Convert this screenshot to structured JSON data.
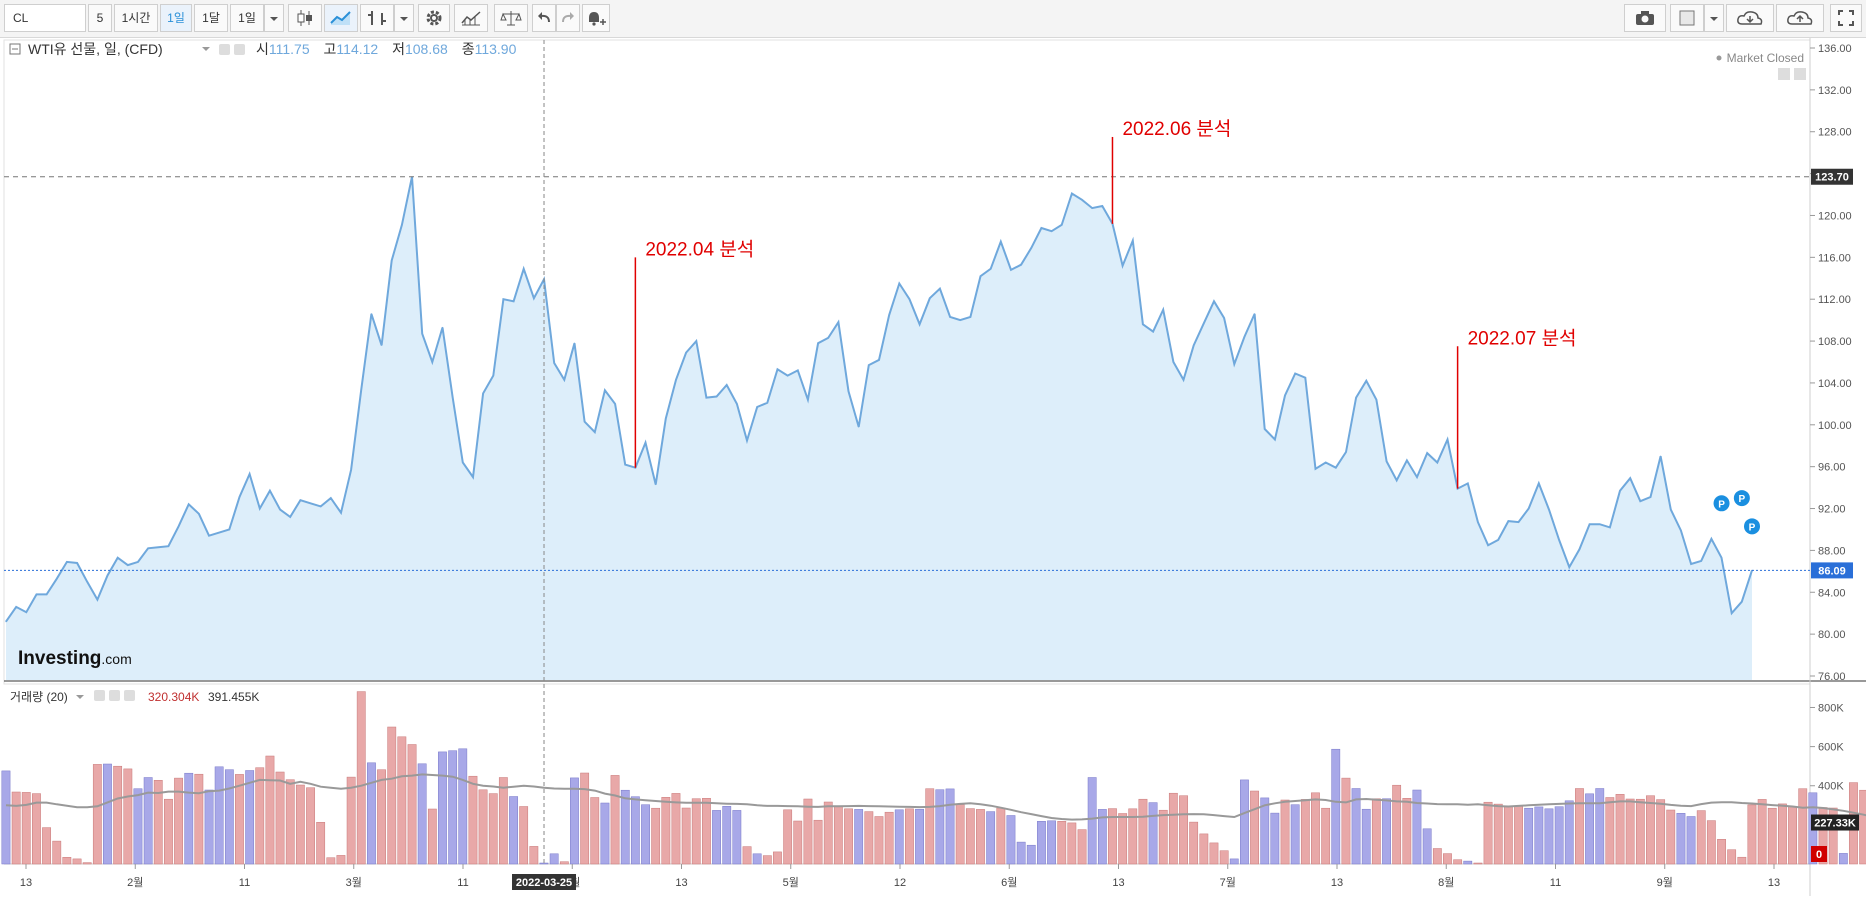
{
  "toolbar": {
    "symbol": "CL",
    "interval_minutes": "5",
    "interval_hour": "1시간",
    "interval_day": "1일",
    "interval_month": "1달",
    "range": "1일"
  },
  "header": {
    "title": "WTI유 선물, 일, (CFD)",
    "open_label": "시",
    "open": "111.75",
    "high_label": "고",
    "high": "114.12",
    "low_label": "저",
    "low": "108.68",
    "close_label": "종",
    "close": "113.90",
    "market_status": "Market Closed"
  },
  "brand": {
    "name": "Investing",
    "suffix": ".com"
  },
  "volume_header": {
    "label": "거래량 (20)",
    "value1": "320.304K",
    "value2": "391.455K"
  },
  "colors": {
    "line": "#6fa8dc",
    "area": "#ddeefa",
    "vol_up": "#a8a8e8",
    "vol_down": "#e8a8a8",
    "vol_ma": "#999999",
    "annotation": "#e00000",
    "last_price": "#2a6fd8"
  },
  "chart_data": [
    {
      "type": "area",
      "title": "WTI유 선물, 일, (CFD)",
      "ylim": [
        75,
        137
      ],
      "yticks": [
        "76.00",
        "80.00",
        "84.00",
        "88.00",
        "92.00",
        "96.00",
        "100.00",
        "104.00",
        "108.00",
        "112.00",
        "116.00",
        "120.00",
        "124.00",
        "128.00",
        "132.00",
        "136.00"
      ],
      "x_tick_labels": [
        "13",
        "2월",
        "11",
        "3월",
        "11",
        "4월",
        "13",
        "5월",
        "12",
        "6월",
        "13",
        "7월",
        "13",
        "8월",
        "11",
        "9월",
        "13"
      ],
      "crosshair_date": "2022-03-25",
      "values": [
        81.2,
        82.6,
        82.1,
        83.8,
        83.8,
        85.3,
        86.9,
        86.8,
        85.0,
        83.3,
        85.6,
        87.3,
        86.6,
        86.9,
        88.2,
        88.3,
        88.4,
        90.3,
        92.4,
        91.5,
        89.4,
        89.7,
        90.0,
        93.1,
        95.3,
        92.0,
        93.7,
        91.9,
        91.2,
        92.8,
        92.5,
        92.2,
        93.0,
        91.6,
        95.7,
        103.4,
        110.6,
        107.6,
        115.7,
        119.1,
        123.7,
        108.7,
        106.0,
        109.3,
        102.6,
        96.4,
        95.0,
        103.0,
        104.7,
        112.0,
        111.8,
        114.9,
        112.1,
        113.9,
        105.9,
        104.3,
        107.8,
        100.3,
        99.3,
        103.3,
        102.0,
        96.2,
        95.9,
        98.3,
        94.3,
        100.6,
        104.3,
        106.9,
        108.0,
        102.6,
        102.7,
        103.8,
        102.0,
        98.5,
        101.7,
        102.1,
        105.3,
        104.7,
        105.2,
        102.4,
        107.8,
        108.3,
        109.8,
        103.2,
        99.8,
        105.7,
        106.2,
        110.5,
        113.5,
        112.0,
        109.6,
        112.1,
        113.0,
        110.3,
        110.0,
        110.3,
        114.2,
        114.9,
        117.5,
        114.8,
        115.3,
        116.9,
        118.8,
        118.5,
        119.1,
        122.1,
        121.5,
        120.7,
        120.9,
        119.2,
        115.2,
        117.6,
        109.6,
        108.9,
        111.0,
        106.0,
        104.3,
        107.6,
        109.7,
        111.8,
        110.2,
        105.8,
        108.4,
        110.6,
        99.6,
        98.6,
        102.8,
        104.9,
        104.5,
        95.8,
        96.4,
        95.9,
        97.4,
        102.6,
        104.2,
        102.4,
        96.5,
        94.7,
        96.6,
        95.0,
        97.3,
        96.4,
        98.6,
        93.9,
        94.4,
        90.7,
        88.5,
        89.0,
        90.8,
        90.7,
        92.0,
        94.4,
        91.9,
        89.0,
        86.4,
        88.1,
        90.5,
        90.5,
        90.2,
        93.7,
        94.9,
        92.7,
        93.1,
        97.0,
        91.9,
        89.9,
        86.7,
        87.0,
        89.1,
        87.3,
        82.0,
        83.1,
        86.1
      ],
      "reference_lines": [
        {
          "label": "123.70",
          "value": 123.7
        },
        {
          "label": "86.09",
          "value": 86.09
        }
      ],
      "annotations": [
        {
          "text": "2022.04 분석",
          "index": 62,
          "top": 116.0
        },
        {
          "text": "2022.06 분석",
          "index": 109,
          "top": 127.5
        },
        {
          "text": "2022.07 분석",
          "index": 143,
          "top": 107.5
        }
      ],
      "markers": [
        {
          "label": "P",
          "index": 169,
          "value": 92.5
        },
        {
          "label": "P",
          "index": 171,
          "value": 93.0
        },
        {
          "label": "P",
          "index": 172,
          "value": 90.3
        }
      ]
    },
    {
      "type": "bar",
      "title": "거래량 (20)",
      "ylim": [
        0,
        920
      ],
      "yticks": [
        "400K",
        "600K",
        "800K"
      ],
      "last_value_label": "227.33K",
      "zero_label": "0",
      "values": [
        476,
        368,
        366,
        360,
        186,
        117,
        34,
        26,
        7,
        509,
        511,
        500,
        486,
        385,
        442,
        428,
        331,
        439,
        464,
        459,
        378,
        497,
        482,
        458,
        478,
        492,
        552,
        470,
        431,
        404,
        390,
        213,
        32,
        44,
        444,
        881,
        517,
        482,
        700,
        650,
        611,
        512,
        281,
        573,
        579,
        589,
        449,
        379,
        360,
        442,
        345,
        294,
        90,
        5,
        52,
        12,
        440,
        465,
        340,
        312,
        453,
        377,
        344,
        303,
        285,
        341,
        361,
        286,
        334,
        336,
        274,
        295,
        274,
        89,
        52,
        43,
        62,
        277,
        220,
        332,
        224,
        317,
        294,
        282,
        279,
        268,
        243,
        265,
        277,
        282,
        280,
        385,
        380,
        384,
        304,
        283,
        279,
        268,
        286,
        248,
        112,
        96,
        218,
        221,
        218,
        210,
        176,
        442,
        279,
        283,
        258,
        282,
        331,
        314,
        275,
        362,
        349,
        214,
        154,
        108,
        68,
        26,
        430,
        373,
        338,
        260,
        327,
        303,
        330,
        364,
        285,
        587,
        439,
        386,
        280,
        334,
        334,
        403,
        336,
        378,
        180,
        79,
        53,
        22,
        15,
        5,
        316,
        306,
        297,
        297,
        285,
        292,
        282,
        293,
        323,
        386,
        359,
        386,
        340,
        356,
        332,
        331,
        349,
        329,
        276,
        259,
        243,
        273,
        222,
        126,
        73,
        35,
        302,
        330,
        285,
        307,
        294,
        385,
        364,
        289,
        286,
        54,
        416,
        377,
        0,
        0
      ],
      "ma_values": [
        300,
        297,
        302,
        314,
        314,
        305,
        298,
        290,
        290,
        295,
        315,
        335,
        345,
        352,
        365,
        363,
        370,
        370,
        365,
        362,
        372,
        375,
        386,
        400,
        415,
        430,
        428,
        427,
        410,
        420,
        410,
        395,
        390,
        385,
        390,
        400,
        415,
        430,
        436,
        448,
        452,
        458,
        455,
        452,
        446,
        430,
        410,
        400,
        396,
        390,
        395,
        400,
        396,
        390,
        386,
        385,
        385,
        383,
        375,
        360,
        350,
        336,
        330,
        326,
        322,
        318,
        315,
        313,
        313,
        313,
        310,
        308,
        307,
        305,
        300,
        297,
        297,
        296,
        295,
        293,
        292,
        295,
        295,
        296,
        297,
        296,
        295,
        294,
        293,
        292,
        291,
        292,
        296,
        303,
        307,
        310,
        305,
        298,
        288,
        277,
        265,
        255,
        245,
        235,
        230,
        227,
        228,
        232,
        238,
        240,
        240,
        240,
        242,
        246,
        250,
        252,
        254,
        255,
        254,
        250,
        245,
        240,
        260,
        280,
        300,
        310,
        318,
        322,
        326,
        330,
        327,
        318,
        315,
        330,
        332,
        328,
        325,
        320,
        318,
        312,
        309,
        306,
        305,
        305,
        303,
        305,
        300,
        296,
        294,
        297,
        300,
        303,
        305,
        307,
        309,
        310,
        310,
        310,
        316,
        320,
        320,
        316,
        312,
        308,
        302,
        298,
        296,
        306,
        314,
        316,
        316,
        312,
        309,
        305,
        301,
        298,
        294,
        288,
        290,
        286,
        279,
        272,
        262,
        252,
        240,
        230,
        220,
        212
      ],
      "up_flags": [
        1,
        0,
        0,
        0,
        0,
        0,
        0,
        0,
        0,
        0,
        1,
        0,
        0,
        1,
        1,
        0,
        0,
        0,
        1,
        0,
        1,
        1,
        1,
        0,
        1,
        0,
        0,
        0,
        0,
        0,
        0,
        0,
        0,
        0,
        0,
        0,
        1,
        0,
        0,
        0,
        0,
        1,
        0,
        1,
        1,
        1,
        0,
        0,
        0,
        0,
        1,
        0,
        0,
        1,
        1,
        0,
        1,
        0,
        0,
        1,
        0,
        1,
        1,
        1,
        0,
        0,
        0,
        0,
        0,
        0,
        1,
        1,
        1,
        0,
        1,
        0,
        0,
        0,
        0,
        0,
        0,
        0,
        0,
        0,
        1,
        0,
        0,
        0,
        1,
        0,
        1,
        0,
        1,
        1,
        0,
        0,
        0,
        1,
        0,
        1,
        1,
        1,
        1,
        1,
        0,
        0,
        0,
        1,
        1,
        0,
        0,
        0,
        0,
        1,
        0,
        0,
        0,
        0,
        0,
        0,
        0,
        1,
        1,
        0,
        1,
        1,
        0,
        1,
        0,
        0,
        0,
        1,
        0,
        1,
        1,
        0,
        1,
        0,
        0,
        1,
        1,
        0,
        0,
        0,
        1,
        0,
        0,
        0,
        0,
        0,
        1,
        1,
        1,
        1,
        1,
        0,
        1,
        1,
        0,
        0,
        0,
        0,
        0,
        0,
        0,
        1,
        1,
        0,
        0,
        0,
        0,
        0,
        0,
        0,
        0,
        0,
        0,
        0,
        1,
        0,
        0,
        1,
        0,
        0,
        1,
        0,
        0
      ]
    }
  ]
}
